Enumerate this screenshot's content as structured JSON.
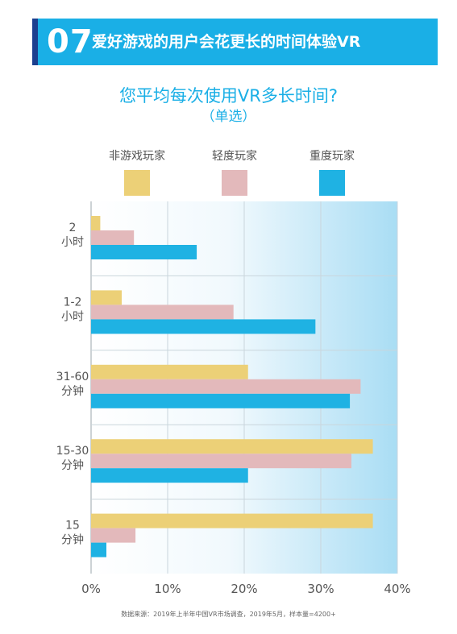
{
  "header": {
    "number": "07",
    "title": "爱好游戏的用户会花更长的时间体验VR"
  },
  "subtitle": "您平均每次使用VR多长时间?",
  "note": "（单选）",
  "footer": "数据来源：2019年上半年中国VR市场调查，2019年5月，样本量=4200+",
  "colors": {
    "header_bg": "#1aafe6",
    "accent": "#1b3f8f",
    "non_gamer": "#ecd077",
    "light_gamer": "#e3b9bb",
    "heavy_gamer": "#1fb2e3"
  },
  "chart_data": {
    "type": "bar",
    "orientation": "horizontal",
    "categories": [
      [
        "2",
        "小时"
      ],
      [
        "1-2",
        "小时"
      ],
      [
        "31-60",
        "分钟"
      ],
      [
        "15-30",
        "分钟"
      ],
      [
        "15",
        "分钟"
      ]
    ],
    "series": [
      {
        "name": "非游戏玩家",
        "color": "#ecd077",
        "values": [
          1.2,
          4.0,
          20.5,
          36.8,
          36.8
        ]
      },
      {
        "name": "轻度玩家",
        "color": "#e3b9bb",
        "values": [
          5.6,
          18.6,
          35.2,
          34.0,
          5.8
        ]
      },
      {
        "name": "重度玩家",
        "color": "#1fb2e3",
        "values": [
          13.8,
          29.3,
          33.8,
          20.5,
          2.0
        ]
      }
    ],
    "xlim": [
      0,
      40
    ],
    "ticks": [
      0,
      10,
      20,
      30,
      40
    ],
    "tick_labels": [
      "0%",
      "10%",
      "20%",
      "30%",
      "40%"
    ],
    "legend": "top",
    "grid": true
  }
}
